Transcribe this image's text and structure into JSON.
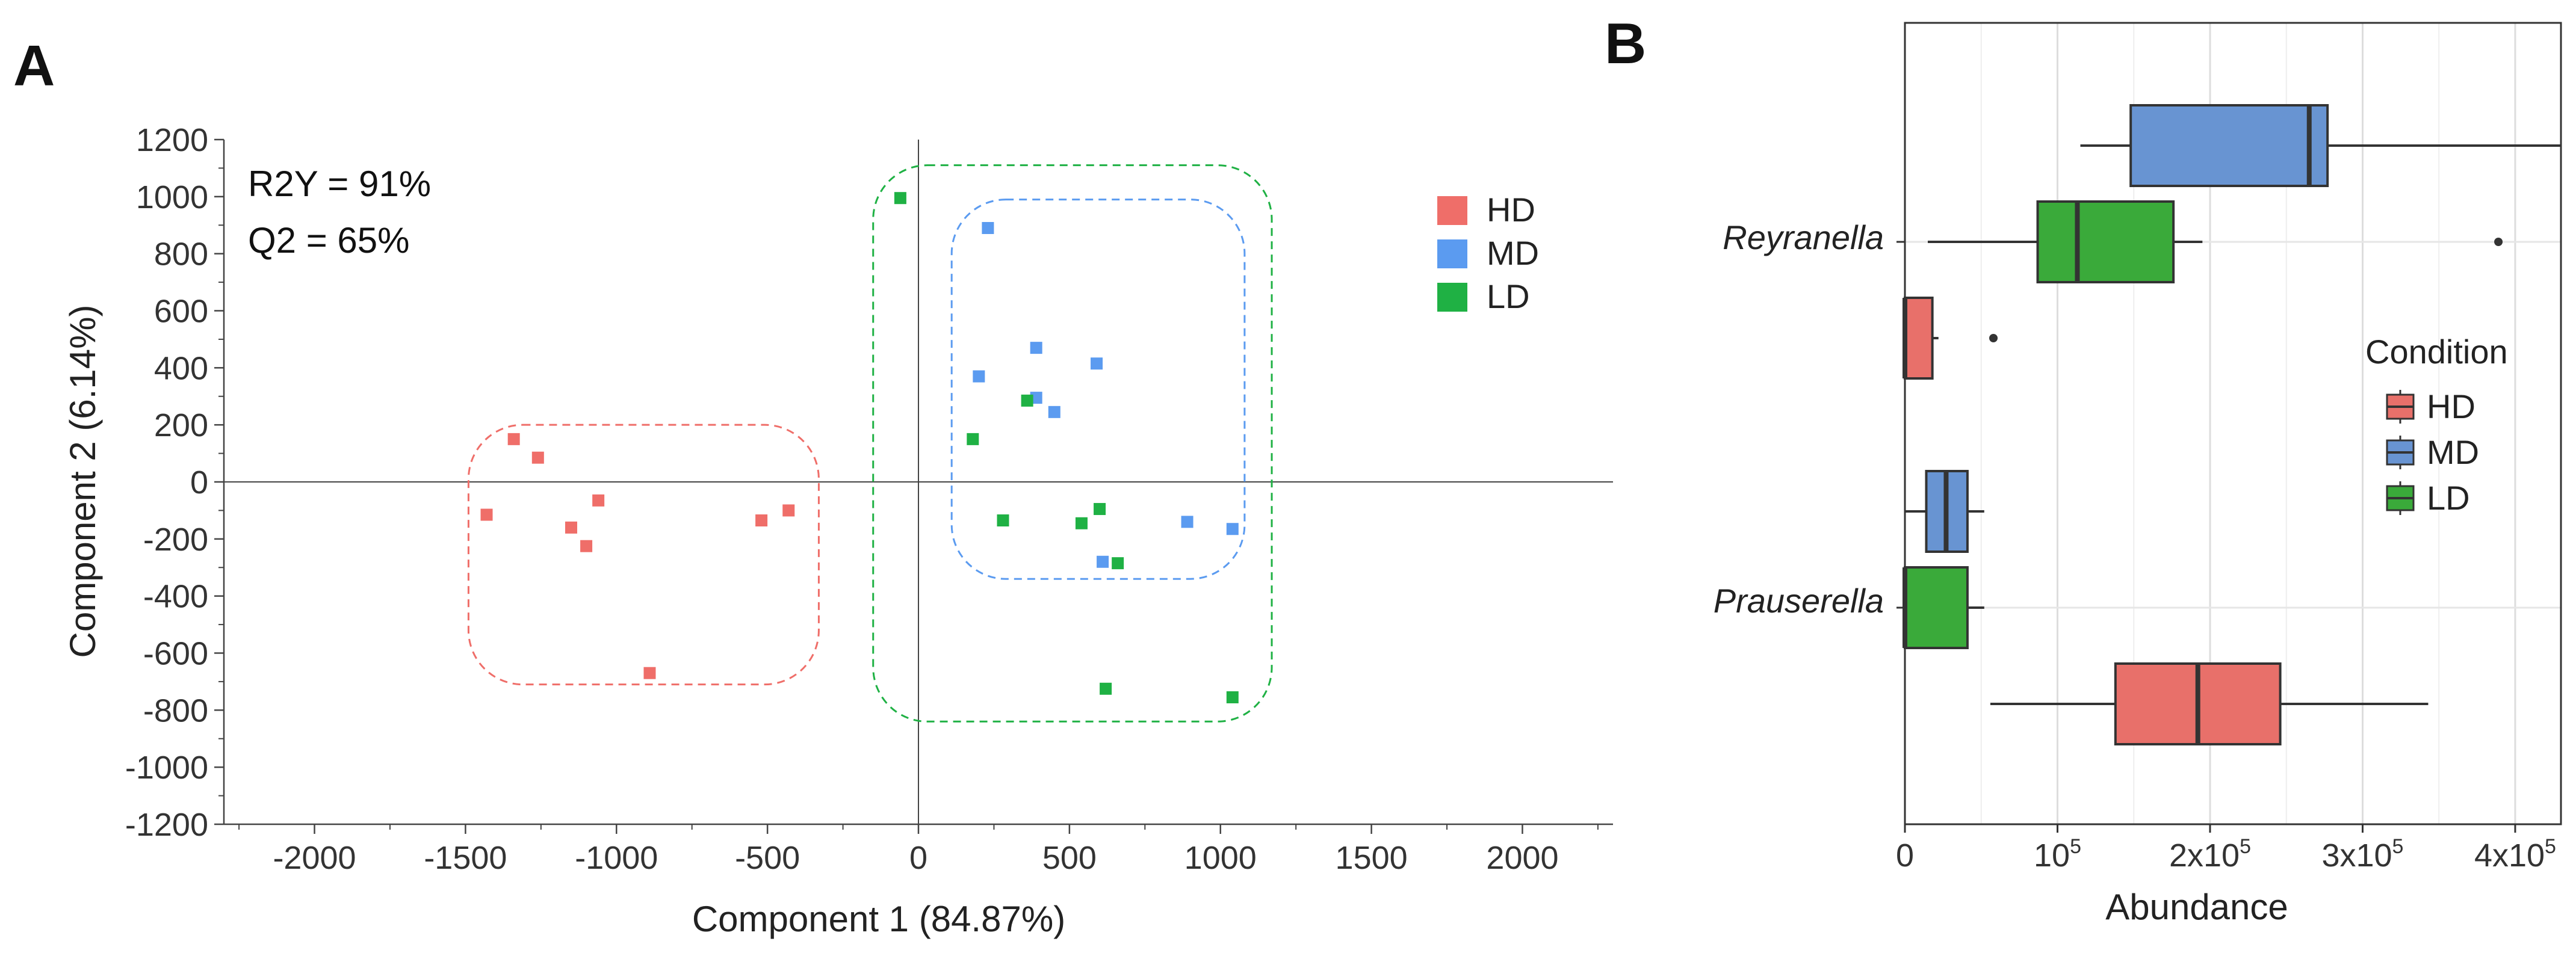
{
  "panels": {
    "a_label": "A",
    "b_label": "B"
  },
  "colors": {
    "HD": "#ef6e69",
    "MD": "#5b9bf0",
    "LD": "#1fb144",
    "HD_box": "#e8706a",
    "MD_box": "#6894d2",
    "LD_box": "#3aaa3a"
  },
  "chart_data": [
    {
      "type": "scatter",
      "title": "",
      "xlabel": "Component 1 (84.87%)",
      "ylabel": "Component 2 (6.14%)",
      "xlim": [
        -2300,
        2300
      ],
      "ylim": [
        -1200,
        1200
      ],
      "xticks": [
        -2000,
        -1500,
        -1000,
        -500,
        0,
        500,
        1000,
        1500,
        2000
      ],
      "yticks": [
        1200,
        1000,
        800,
        600,
        400,
        200,
        0,
        -200,
        -400,
        -600,
        -800,
        -1000,
        -1200
      ],
      "stats": {
        "r2y": "R2Y = 91%",
        "q2": "Q2 = 65%"
      },
      "legend": [
        "HD",
        "MD",
        "LD"
      ],
      "series": [
        {
          "name": "HD",
          "points": [
            [
              -1340,
              150
            ],
            [
              -1260,
              85
            ],
            [
              -1430,
              -115
            ],
            [
              -1060,
              -65
            ],
            [
              -1150,
              -160
            ],
            [
              -1100,
              -225
            ],
            [
              -520,
              -135
            ],
            [
              -430,
              -100
            ],
            [
              -890,
              -670
            ]
          ]
        },
        {
          "name": "MD",
          "points": [
            [
              230,
              890
            ],
            [
              390,
              470
            ],
            [
              590,
              415
            ],
            [
              200,
              370
            ],
            [
              390,
              295
            ],
            [
              450,
              245
            ],
            [
              890,
              -140
            ],
            [
              1040,
              -165
            ],
            [
              610,
              -280
            ]
          ]
        },
        {
          "name": "LD",
          "points": [
            [
              -60,
              995
            ],
            [
              180,
              150
            ],
            [
              360,
              285
            ],
            [
              280,
              -135
            ],
            [
              540,
              -145
            ],
            [
              600,
              -95
            ],
            [
              660,
              -285
            ],
            [
              620,
              -725
            ],
            [
              1040,
              -755
            ]
          ]
        }
      ],
      "ellipses": [
        {
          "group": "HD",
          "xmin": -1490,
          "xmax": -330,
          "ymin": -710,
          "ymax": 200
        },
        {
          "group": "MD",
          "xmin": 110,
          "xmax": 1080,
          "ymin": -340,
          "ymax": 990
        },
        {
          "group": "LD",
          "xmin": -150,
          "xmax": 1170,
          "ymin": -840,
          "ymax": 1110
        }
      ]
    },
    {
      "type": "boxplot",
      "title": "",
      "xlabel": "Abundance",
      "ylabel": "",
      "xlim": [
        0,
        430000
      ],
      "xticks": [
        {
          "value": 0,
          "base": "0",
          "sup": ""
        },
        {
          "value": 100000,
          "base": "10",
          "sup": "5"
        },
        {
          "value": 200000,
          "base": "2x10",
          "sup": "5"
        },
        {
          "value": 300000,
          "base": "3x10",
          "sup": "5"
        },
        {
          "value": 400000,
          "base": "4x10",
          "sup": "5"
        }
      ],
      "categories": [
        "Reyranella",
        "Prauserella"
      ],
      "legend_title": "Condition",
      "legend": [
        "HD",
        "MD",
        "LD"
      ],
      "boxes": [
        {
          "category": "Reyranella",
          "group": "MD",
          "whisker_low": 115000,
          "q1": 148000,
          "median": 265000,
          "q3": 277000,
          "whisker_high": 430000,
          "outliers": []
        },
        {
          "category": "Reyranella",
          "group": "LD",
          "whisker_low": 15000,
          "q1": 87000,
          "median": 113000,
          "q3": 176000,
          "whisker_high": 195000,
          "outliers": [
            389000
          ]
        },
        {
          "category": "Reyranella",
          "group": "HD",
          "whisker_low": 0,
          "q1": 0,
          "median": 0,
          "q3": 18000,
          "whisker_high": 22000,
          "outliers": [
            58000
          ]
        },
        {
          "category": "Prauserella",
          "group": "MD",
          "whisker_low": 0,
          "q1": 14000,
          "median": 27000,
          "q3": 41000,
          "whisker_high": 52000,
          "outliers": []
        },
        {
          "category": "Prauserella",
          "group": "LD",
          "whisker_low": 0,
          "q1": 0,
          "median": 0,
          "q3": 41000,
          "whisker_high": 52000,
          "outliers": []
        },
        {
          "category": "Prauserella",
          "group": "HD",
          "whisker_low": 56000,
          "q1": 138000,
          "median": 192000,
          "q3": 246000,
          "whisker_high": 343000,
          "outliers": []
        }
      ]
    }
  ]
}
